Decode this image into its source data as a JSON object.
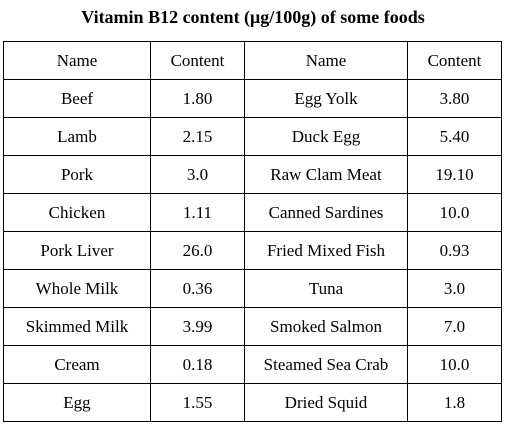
{
  "title": "Vitamin B12 content (μg/100g) of some foods",
  "headers": [
    "Name",
    "Content",
    "Name",
    "Content"
  ],
  "rows": [
    [
      "Beef",
      "1.80",
      "Egg Yolk",
      "3.80"
    ],
    [
      "Lamb",
      "2.15",
      "Duck Egg",
      "5.40"
    ],
    [
      "Pork",
      "3.0",
      "Raw Clam Meat",
      "19.10"
    ],
    [
      "Chicken",
      "1.11",
      "Canned Sardines",
      "10.0"
    ],
    [
      "Pork Liver",
      "26.0",
      "Fried Mixed Fish",
      "0.93"
    ],
    [
      "Whole Milk",
      "0.36",
      "Tuna",
      "3.0"
    ],
    [
      "Skimmed Milk",
      "3.99",
      "Smoked Salmon",
      "7.0"
    ],
    [
      "Cream",
      "0.18",
      "Steamed Sea Crab",
      "10.0"
    ],
    [
      "Egg",
      "1.55",
      "Dried Squid",
      "1.8"
    ]
  ]
}
